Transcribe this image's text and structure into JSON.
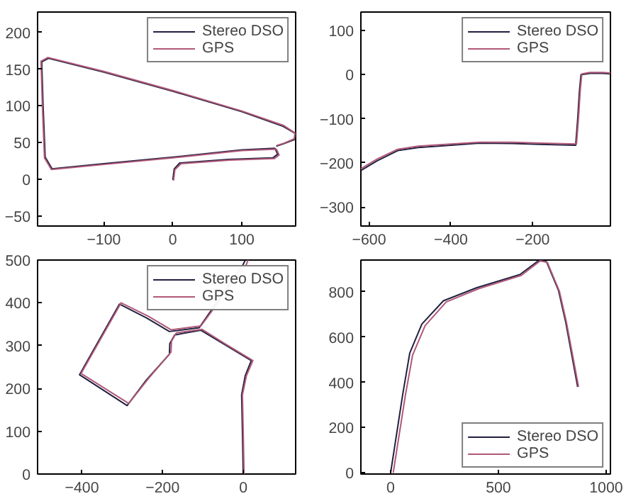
{
  "chart_data": [
    {
      "type": "line",
      "xlim": [
        -196,
        178
      ],
      "ylim": [
        -64,
        228
      ],
      "xticks": [
        -100,
        0,
        100
      ],
      "yticks": [
        -50,
        0,
        50,
        100,
        150,
        200
      ],
      "grid": false,
      "legend": "top right",
      "marker": "none",
      "line_style": "solid",
      "series": [
        {
          "name": "Stereo DSO",
          "color": "#202040",
          "x": [
            0,
            2,
            10,
            80,
            145,
            152,
            148,
            100,
            0,
            -100,
            -175,
            -185,
            -188,
            -190,
            -180,
            -100,
            0,
            100,
            160,
            178,
            176,
            160,
            150
          ],
          "values": [
            -1,
            14,
            22,
            27,
            29,
            34,
            42,
            40,
            30,
            21,
            14,
            30,
            100,
            160,
            165,
            146,
            120,
            92,
            72,
            62,
            54,
            48,
            45
          ]
        },
        {
          "name": "GPS",
          "color": "#b05878",
          "x": [
            1,
            3,
            12,
            82,
            147,
            154,
            150,
            100,
            0,
            -100,
            -176,
            -186,
            -189,
            -191,
            -181,
            -100,
            0,
            100,
            161,
            177,
            176,
            161,
            151
          ],
          "values": [
            -2,
            13,
            21,
            26,
            28,
            33,
            41,
            39,
            29,
            20,
            13,
            29,
            99,
            161,
            166,
            147,
            121,
            93,
            73,
            63,
            55,
            49,
            46
          ]
        }
      ]
    },
    {
      "type": "line",
      "xlim": [
        -620,
        -10
      ],
      "ylim": [
        -343,
        142
      ],
      "xticks": [
        -600,
        -400,
        -200
      ],
      "yticks": [
        -300,
        -200,
        -100,
        0,
        100
      ],
      "grid": false,
      "legend": "top right",
      "marker": "none",
      "line_style": "solid",
      "series": [
        {
          "name": "Stereo DSO",
          "color": "#202040",
          "x": [
            -620,
            -580,
            -530,
            -480,
            -400,
            -330,
            -250,
            -180,
            -95,
            -90,
            -86,
            -82,
            -60,
            -30,
            -10
          ],
          "values": [
            -217,
            -195,
            -172,
            -165,
            -160,
            -155,
            -156,
            -158,
            -160,
            -100,
            -40,
            0,
            3,
            3,
            2
          ]
        },
        {
          "name": "GPS",
          "color": "#b05878",
          "x": [
            -620,
            -580,
            -530,
            -480,
            -400,
            -330,
            -250,
            -180,
            -93,
            -88,
            -84,
            -80,
            -60,
            -30,
            -10
          ],
          "values": [
            -213,
            -191,
            -169,
            -162,
            -157,
            -153,
            -153,
            -155,
            -157,
            -98,
            -38,
            2,
            5,
            5,
            4
          ]
        }
      ]
    },
    {
      "type": "line",
      "xlim": [
        -510,
        130
      ],
      "ylim": [
        0,
        500
      ],
      "xticks": [
        -400,
        -200,
        0
      ],
      "yticks": [
        0,
        100,
        200,
        300,
        400,
        500
      ],
      "grid": false,
      "legend": "top right",
      "marker": "none",
      "line_style": "solid",
      "series": [
        {
          "name": "Stereo DSO",
          "color": "#202040",
          "x": [
            0,
            -2,
            -4,
            5,
            20,
            -50,
            -105,
            -170,
            -182,
            -183,
            -240,
            -288,
            -406,
            -307,
            -240,
            -183,
            -109,
            0,
            5
          ],
          "values": [
            0,
            100,
            185,
            230,
            265,
            305,
            336,
            325,
            305,
            280,
            220,
            160,
            232,
            397,
            365,
            333,
            342,
            490,
            500
          ]
        },
        {
          "name": "GPS",
          "color": "#b05878",
          "x": [
            2,
            0,
            -2,
            8,
            24,
            -46,
            -102,
            -166,
            -178,
            -179,
            -236,
            -284,
            -402,
            -303,
            -236,
            -179,
            -105,
            8,
            12
          ],
          "values": [
            0,
            100,
            185,
            230,
            265,
            305,
            338,
            330,
            310,
            285,
            222,
            165,
            235,
            400,
            369,
            337,
            346,
            490,
            500
          ]
        }
      ]
    },
    {
      "type": "line",
      "xlim": [
        -138,
        1020
      ],
      "ylim": [
        -5,
        940
      ],
      "xticks": [
        0,
        500,
        1000
      ],
      "yticks": [
        0,
        200,
        400,
        600,
        800
      ],
      "grid": false,
      "legend": "bottom right",
      "marker": "none",
      "line_style": "solid",
      "series": [
        {
          "name": "Stereo DSO",
          "color": "#202040",
          "x": [
            0,
            56,
            89,
            145,
            245,
            400,
            600,
            690,
            723,
            779,
            812,
            868
          ],
          "values": [
            0,
            346,
            530,
            657,
            760,
            818,
            876,
            940,
            933,
            806,
            668,
            380
          ]
        },
        {
          "name": "GPS",
          "color": "#b05878",
          "x": [
            12,
            68,
            102,
            160,
            258,
            410,
            606,
            694,
            727,
            783,
            816,
            872
          ],
          "values": [
            0,
            340,
            520,
            650,
            755,
            814,
            872,
            936,
            930,
            803,
            665,
            380
          ]
        }
      ]
    }
  ]
}
